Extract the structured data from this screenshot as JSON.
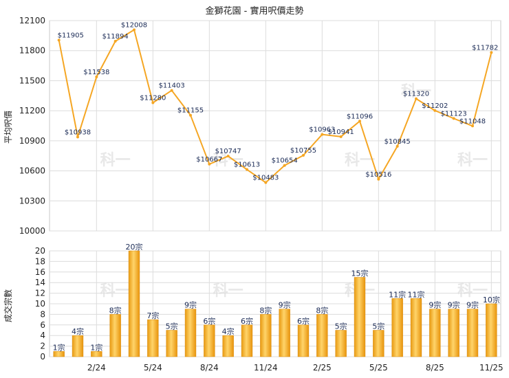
{
  "chart_data": [
    {
      "type": "line",
      "title": "金獅花園 - 實用呎價走勢",
      "ylabel": "平均呎價",
      "ylim": [
        10000,
        12100
      ],
      "yticks": [
        10000,
        10300,
        10600,
        10900,
        11200,
        11500,
        11800,
        12100
      ],
      "grid": true,
      "color": "#f5a623",
      "series": [
        {
          "values": [
            11905,
            10938,
            11538,
            11894,
            12008,
            11280,
            11403,
            11155,
            10667,
            10747,
            10613,
            10483,
            10654,
            10755,
            10963,
            10941,
            11096,
            10516,
            10845,
            11320,
            11202,
            11123,
            11048,
            11782
          ],
          "labels": [
            "$11905",
            "$10938",
            "$11538",
            "$11894",
            "$12008",
            "$11280",
            "$11403",
            "$11155",
            "$10667",
            "$10747",
            "$10613",
            "$10483",
            "$10654",
            "$10755",
            "$10963",
            "$10941",
            "$11096",
            "$10516",
            "$10845",
            "$11320",
            "$11202",
            "$11123",
            "$11048",
            "$11782"
          ]
        }
      ]
    },
    {
      "type": "bar",
      "ylabel": "成交宗數",
      "ylim": [
        0,
        20
      ],
      "yticks": [
        0,
        2,
        4,
        6,
        8,
        10,
        12,
        14,
        16,
        18,
        20
      ],
      "grid": true,
      "color": "#f5a623",
      "values": [
        1,
        4,
        1,
        8,
        20,
        7,
        5,
        9,
        6,
        4,
        6,
        8,
        9,
        6,
        8,
        5,
        15,
        5,
        11,
        11,
        9,
        9,
        9,
        10
      ],
      "labels": [
        "1宗",
        "4宗",
        "1宗",
        "8宗",
        "20宗",
        "7宗",
        "5宗",
        "9宗",
        "6宗",
        "4宗",
        "6宗",
        "8宗",
        "9宗",
        "6宗",
        "8宗",
        "5宗",
        "15宗",
        "5宗",
        "11宗",
        "11宗",
        "9宗",
        "9宗",
        "9宗",
        "10宗"
      ],
      "xticks": [
        {
          "index": 2,
          "label": "2/24"
        },
        {
          "index": 5,
          "label": "5/24"
        },
        {
          "index": 8,
          "label": "8/24"
        },
        {
          "index": 11,
          "label": "11/24"
        },
        {
          "index": 14,
          "label": "2/25"
        },
        {
          "index": 17,
          "label": "5/25"
        },
        {
          "index": 20,
          "label": "8/25"
        },
        {
          "index": 23,
          "label": "11/25"
        }
      ]
    }
  ],
  "watermark": "科一"
}
